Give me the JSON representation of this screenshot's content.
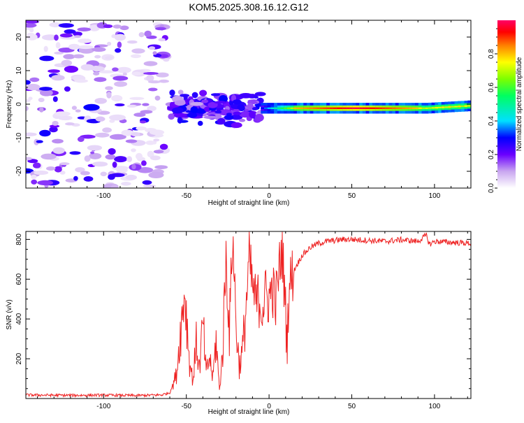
{
  "figure": {
    "title": "KOM5.2025.308.16.12.G12"
  },
  "chart_data": [
    {
      "type": "heatmap",
      "title": "KOM5.2025.308.16.12.G12",
      "xlabel": "Height of straight line (km)",
      "ylabel": "Frequency (Hz)",
      "xlim": [
        -147,
        122
      ],
      "ylim": [
        -25,
        25
      ],
      "xticks": [
        -100,
        -50,
        0,
        50,
        100
      ],
      "yticks": [
        -20,
        -10,
        0,
        10,
        20
      ],
      "colorbar": {
        "label": "Normalized spectral amplitude",
        "range": [
          0,
          1
        ],
        "ticks": [
          0.0,
          0.2,
          0.4,
          0.6,
          0.8
        ]
      },
      "features": [
        {
          "name": "noise speckle",
          "x_range": [
            -147,
            -62
          ],
          "freq_range": [
            -25,
            25
          ],
          "amplitude": [
            0.03,
            0.3
          ]
        },
        {
          "name": "scattered clusters",
          "x_range": [
            -60,
            -5
          ],
          "freq_range": [
            -8,
            8
          ],
          "amplitude": [
            0.1,
            0.3
          ]
        },
        {
          "name": "signal band",
          "x_range": [
            -5,
            122
          ],
          "freq": [
            -1.8,
            0.1
          ],
          "amplitude": [
            0.3,
            0.98
          ]
        }
      ]
    },
    {
      "type": "line",
      "xlabel": "Height of straight line (km)",
      "ylabel": "SNR (v/v)",
      "xlim": [
        -147,
        122
      ],
      "ylim": [
        0,
        840
      ],
      "xticks": [
        -100,
        -50,
        0,
        50,
        100
      ],
      "yticks": [
        200,
        400,
        600,
        800
      ],
      "series": [
        {
          "name": "SNR",
          "color": "#ee2222",
          "x": [
            -147,
            -120,
            -100,
            -80,
            -65,
            -60,
            -56,
            -54,
            -52,
            -51,
            -50,
            -48,
            -46,
            -44,
            -42,
            -40,
            -38,
            -36,
            -34,
            -32,
            -30,
            -28,
            -26,
            -24,
            -22,
            -21,
            -20,
            -18,
            -16,
            -14,
            -12,
            -10,
            -8,
            -6,
            -4,
            -2,
            0,
            2,
            4,
            6,
            8,
            10,
            11,
            12,
            14,
            16,
            18,
            20,
            25,
            30,
            35,
            40,
            45,
            50,
            60,
            70,
            80,
            90,
            95,
            97,
            100,
            110,
            122
          ],
          "y": [
            18,
            16,
            17,
            15,
            18,
            30,
            120,
            300,
            450,
            555,
            420,
            180,
            90,
            280,
            150,
            380,
            120,
            210,
            100,
            300,
            40,
            240,
            720,
            330,
            830,
            620,
            380,
            160,
            240,
            450,
            700,
            560,
            480,
            500,
            460,
            520,
            500,
            560,
            480,
            640,
            760,
            430,
            280,
            560,
            620,
            660,
            690,
            720,
            760,
            780,
            790,
            795,
            800,
            800,
            795,
            790,
            798,
            790,
            820,
            775,
            790,
            785,
            780
          ]
        }
      ]
    }
  ]
}
